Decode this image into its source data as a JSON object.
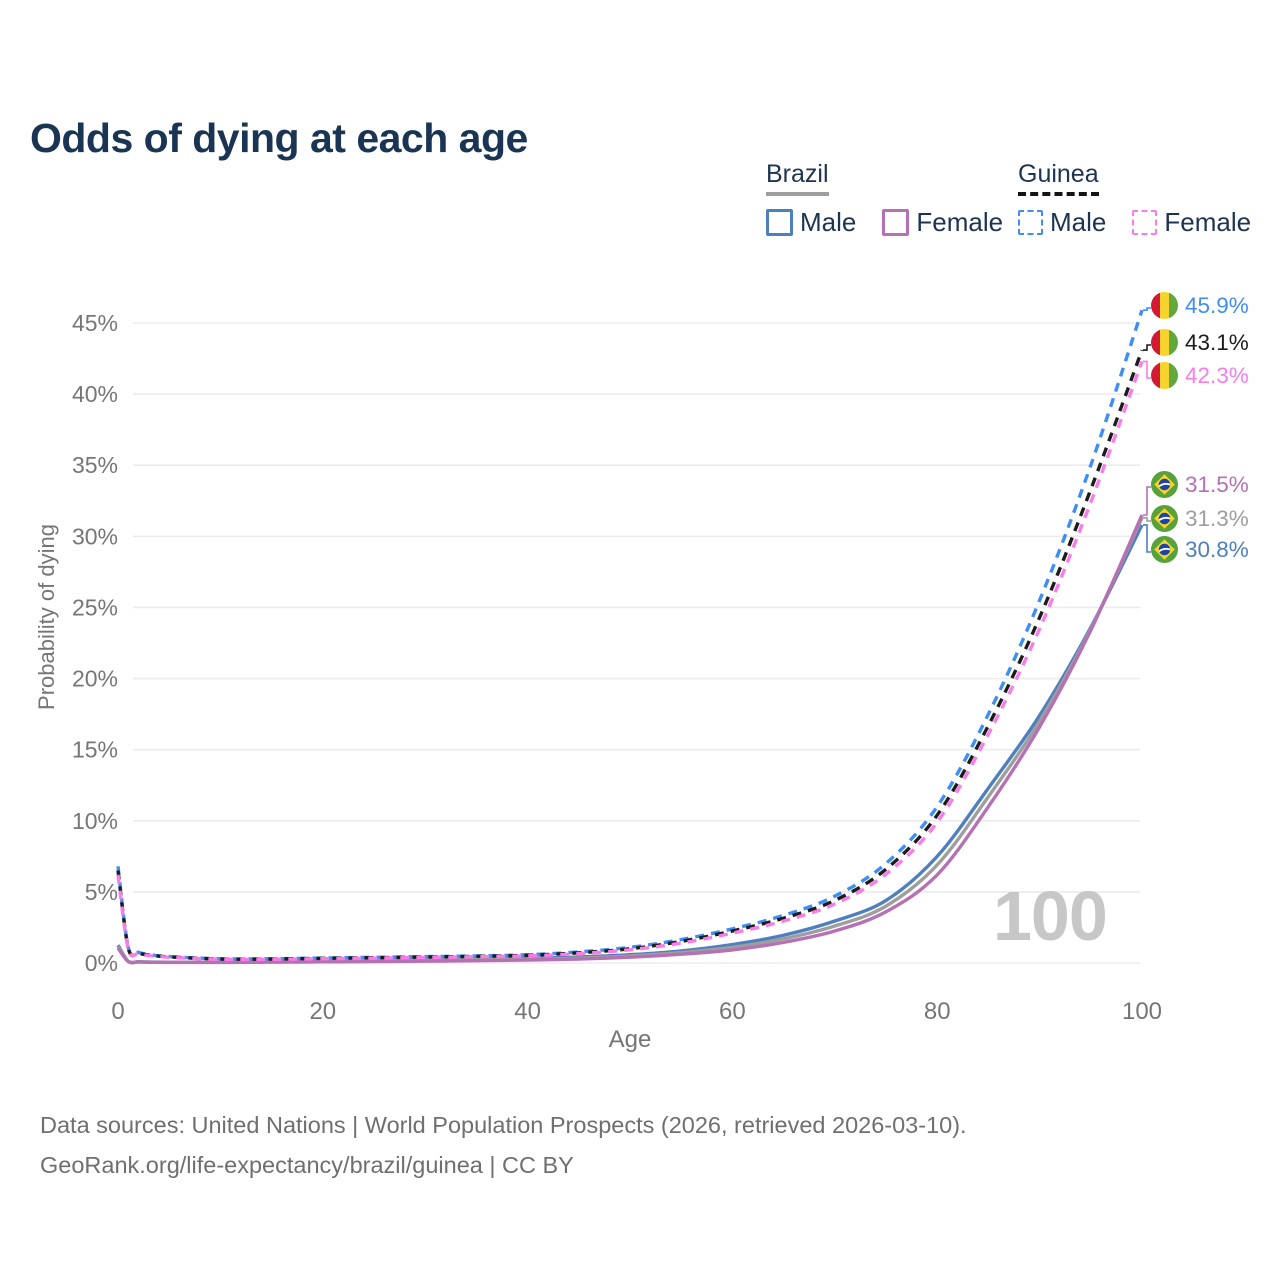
{
  "title": "Odds of dying at each age",
  "legend": {
    "groups": [
      {
        "label": "Brazil",
        "line_style": "solid",
        "underline_color": "#9e9e9e",
        "items": [
          {
            "label": "Male",
            "color": "#4e7fbe"
          },
          {
            "label": "Female",
            "color": "#b671b4"
          }
        ]
      },
      {
        "label": "Guinea",
        "line_style": "dashed",
        "underline_color": "#141414",
        "items": [
          {
            "label": "Male",
            "color": "#3f8ef3"
          },
          {
            "label": "Female",
            "color": "#fa7cea"
          }
        ]
      }
    ]
  },
  "watermark": "100",
  "footer": {
    "line1": "Data sources: United Nations | World Population Prospects (2026, retrieved 2026-03-10).",
    "line2": "GeoRank.org/life-expectancy/brazil/guinea | CC BY"
  },
  "chart_data": {
    "type": "line",
    "title": "Odds of dying at each age",
    "xlabel": "Age",
    "ylabel": "Probability of dying",
    "xlim": [
      0,
      100
    ],
    "ylim_percent": [
      0,
      47
    ],
    "x_tick_values": [
      0,
      20,
      40,
      60,
      80,
      100
    ],
    "y_tick_values": [
      0,
      5,
      10,
      15,
      20,
      25,
      30,
      35,
      40,
      45
    ],
    "grid": "horizontal",
    "legend_position": "top-right",
    "hovered_age": 100,
    "ages": [
      0,
      1,
      2,
      3,
      5,
      10,
      15,
      20,
      25,
      30,
      35,
      40,
      45,
      50,
      55,
      60,
      65,
      70,
      75,
      80,
      85,
      90,
      95,
      100
    ],
    "series": [
      {
        "id": "guinea-male",
        "country": "Guinea",
        "sex": "Male",
        "color": "#3f8ef3",
        "dashed": true,
        "end_label": "45.9%",
        "flag": "guinea",
        "values_percent": [
          6.8,
          1.1,
          0.75,
          0.6,
          0.45,
          0.3,
          0.3,
          0.35,
          0.4,
          0.45,
          0.5,
          0.58,
          0.78,
          1.1,
          1.65,
          2.4,
          3.35,
          4.7,
          7.0,
          11.0,
          17.5,
          25.5,
          35.0,
          45.9
        ]
      },
      {
        "id": "guinea-both",
        "country": "Guinea",
        "sex": "Both",
        "color": "#1c1c1c",
        "dashed": true,
        "end_label": "43.1%",
        "flag": "guinea",
        "values_percent": [
          6.5,
          1.05,
          0.7,
          0.57,
          0.43,
          0.28,
          0.28,
          0.33,
          0.37,
          0.42,
          0.47,
          0.54,
          0.72,
          1.0,
          1.52,
          2.25,
          3.15,
          4.4,
          6.6,
          10.4,
          16.7,
          24.3,
          33.3,
          43.1
        ]
      },
      {
        "id": "guinea-female",
        "country": "Guinea",
        "sex": "Female",
        "color": "#fa7cea",
        "dashed": true,
        "end_label": "42.3%",
        "flag": "guinea",
        "values_percent": [
          6.2,
          1.0,
          0.66,
          0.53,
          0.4,
          0.26,
          0.26,
          0.3,
          0.34,
          0.39,
          0.44,
          0.5,
          0.66,
          0.93,
          1.4,
          2.1,
          2.95,
          4.15,
          6.25,
          9.9,
          16.1,
          23.5,
          32.4,
          42.3
        ]
      },
      {
        "id": "brazil-female",
        "country": "Brazil",
        "sex": "Female",
        "color": "#b671b4",
        "dashed": false,
        "end_label": "31.5%",
        "flag": "brazil",
        "values_percent": [
          1.05,
          0.1,
          0.07,
          0.05,
          0.04,
          0.04,
          0.06,
          0.08,
          0.1,
          0.13,
          0.16,
          0.21,
          0.28,
          0.41,
          0.62,
          0.92,
          1.45,
          2.25,
          3.6,
          6.2,
          11.0,
          16.6,
          23.4,
          31.5
        ]
      },
      {
        "id": "brazil-both",
        "country": "Brazil",
        "sex": "Both",
        "color": "#9e9e9e",
        "dashed": false,
        "end_label": "31.3%",
        "flag": "brazil",
        "values_percent": [
          1.15,
          0.11,
          0.08,
          0.06,
          0.05,
          0.05,
          0.09,
          0.14,
          0.17,
          0.2,
          0.23,
          0.27,
          0.35,
          0.5,
          0.73,
          1.1,
          1.7,
          2.6,
          4.0,
          6.9,
          11.7,
          17.0,
          23.5,
          31.3
        ]
      },
      {
        "id": "brazil-male",
        "country": "Brazil",
        "sex": "Male",
        "color": "#4e7fbe",
        "dashed": false,
        "end_label": "30.8%",
        "flag": "brazil",
        "values_percent": [
          1.25,
          0.12,
          0.09,
          0.07,
          0.06,
          0.06,
          0.12,
          0.2,
          0.24,
          0.27,
          0.3,
          0.34,
          0.42,
          0.58,
          0.85,
          1.3,
          1.95,
          2.95,
          4.4,
          7.5,
          12.3,
          17.4,
          23.6,
          30.8
        ]
      }
    ]
  }
}
